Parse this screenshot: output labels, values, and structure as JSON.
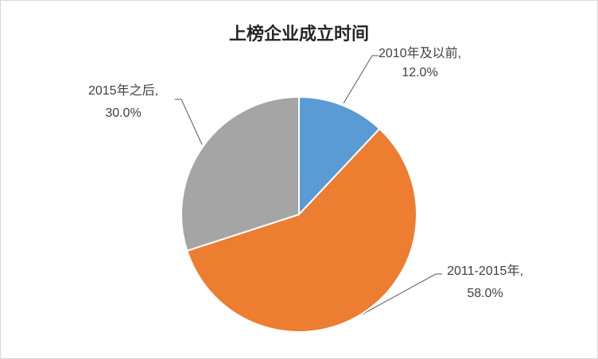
{
  "chart_data": {
    "type": "pie",
    "title": "上榜企业成立时间",
    "categories": [
      "2010年及以前,",
      "2011-2015年,",
      "2015年之后,"
    ],
    "values": [
      12.0,
      58.0,
      30.0
    ],
    "value_labels": [
      "12.0%",
      "58.0%",
      "30.0%"
    ],
    "colors": [
      "#5b9bd5",
      "#ed7d31",
      "#a5a5a5"
    ]
  }
}
